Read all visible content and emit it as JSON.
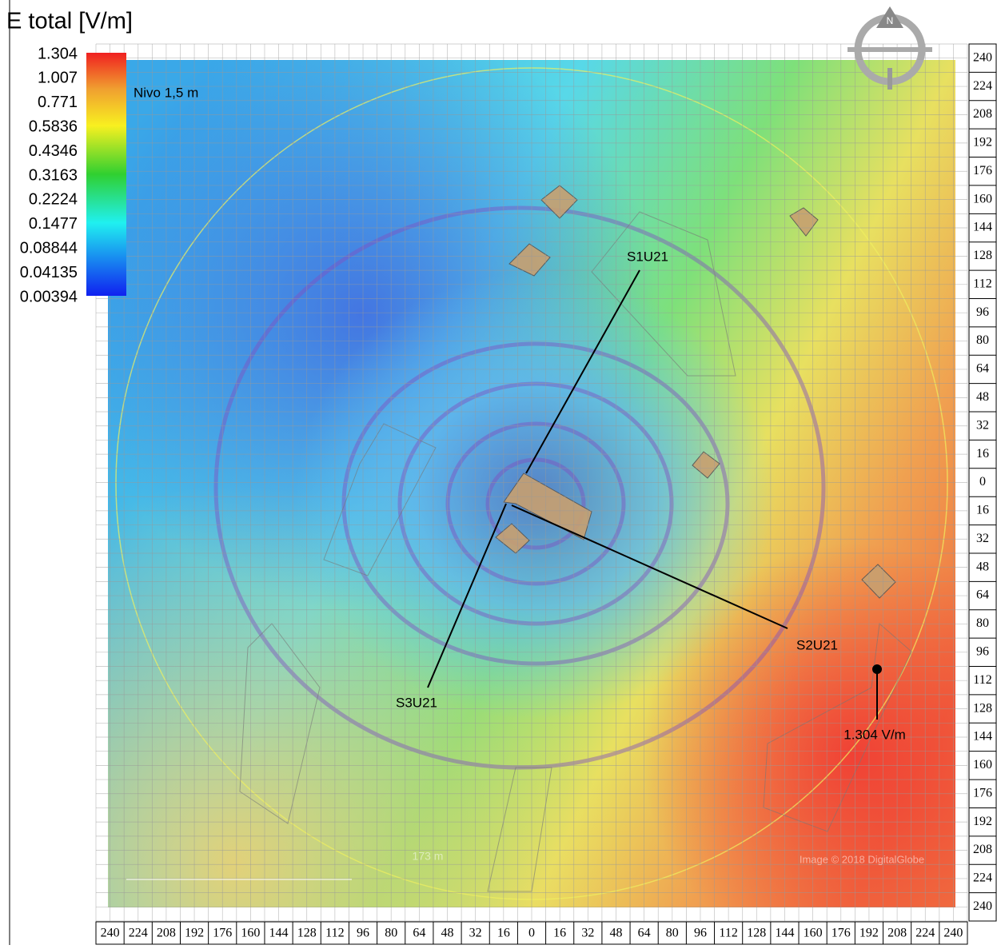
{
  "title": "E total [V/m]",
  "legend": {
    "labels": [
      "1.304",
      "1.007",
      "0.771",
      "0.5836",
      "0.4346",
      "0.3163",
      "0.2224",
      "0.1477",
      "0.08844",
      "0.04135",
      "0.00394"
    ]
  },
  "level": "Nivo 1,5 m",
  "sites": [
    "S1U21",
    "S2U21",
    "S3U21"
  ],
  "max_label": "1.304 V/m",
  "scale_label": "173 m",
  "credit": "Image © 2018 DigitalGlobe",
  "compass": "N",
  "right_axis": [
    240,
    224,
    208,
    192,
    176,
    160,
    144,
    128,
    112,
    96,
    80,
    64,
    48,
    32,
    16,
    0,
    16,
    32,
    48,
    64,
    80,
    96,
    112,
    128,
    144,
    160,
    176,
    192,
    208,
    224,
    240
  ],
  "bottom_axis": [
    240,
    224,
    208,
    192,
    176,
    160,
    144,
    128,
    112,
    96,
    80,
    64,
    48,
    32,
    16,
    0,
    16,
    32,
    48,
    64,
    80,
    96,
    112,
    128,
    144,
    160,
    176,
    192,
    208,
    224,
    240
  ]
}
